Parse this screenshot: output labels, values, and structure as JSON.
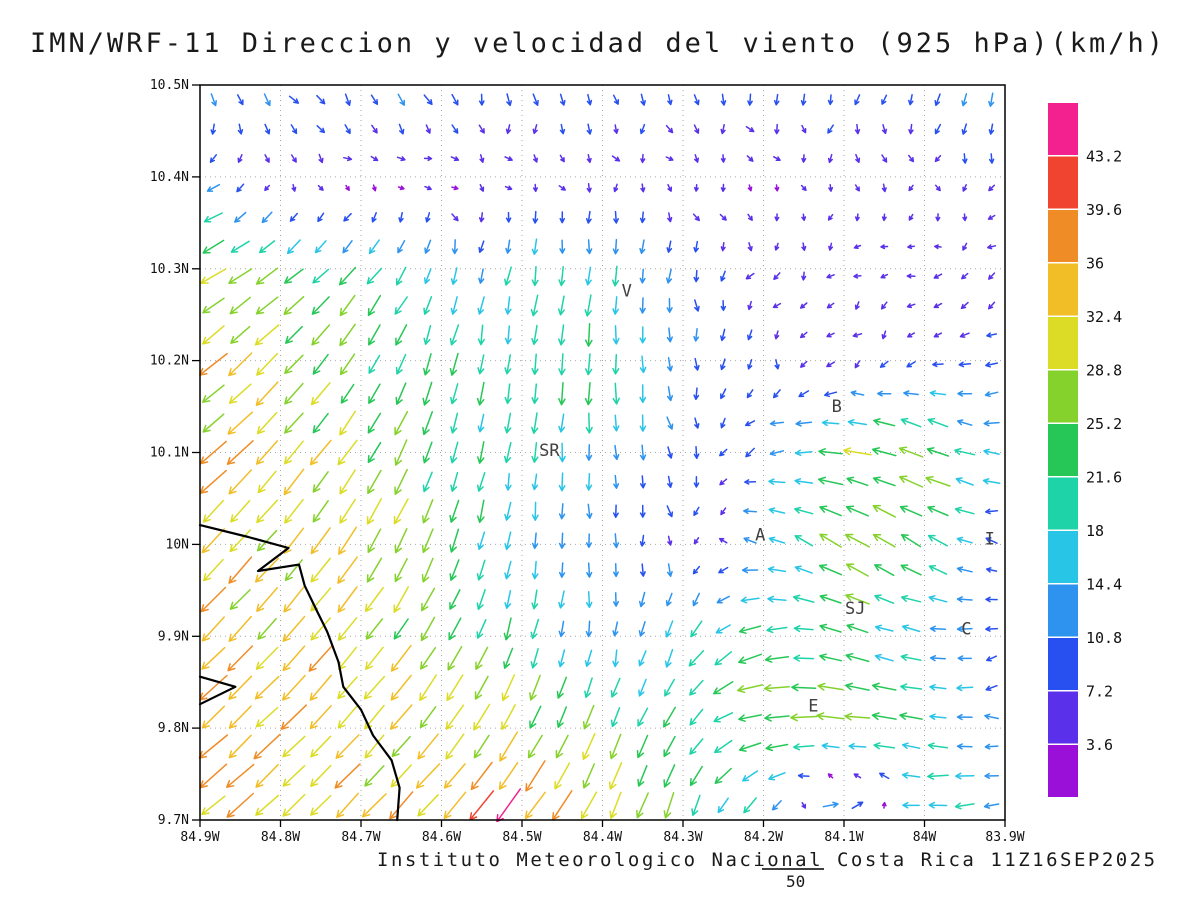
{
  "page": {
    "title": "IMN/WRF-11 Direccion y velocidad del viento (925 hPa)(km/h)",
    "footer": "Instituto Meteorologico Nacional Costa Rica 11Z16SEP2025",
    "reference_vector_label": "50"
  },
  "chart_data": {
    "type": "quiver",
    "title": "IMN/WRF-11 Direccion y velocidad del viento (925 hPa)(km/h)",
    "model": "IMN/WRF-11",
    "variable": "Direccion y velocidad del viento",
    "level": "925 hPa",
    "units": "km/h",
    "valid_time": "11Z16SEP2025",
    "source": "Instituto Meteorologico Nacional Costa Rica",
    "x_axis": {
      "tick_labels": [
        "84.9W",
        "84.8W",
        "84.7W",
        "84.6W",
        "84.5W",
        "84.4W",
        "84.3W",
        "84.2W",
        "84.1W",
        "84W",
        "83.9W"
      ],
      "lon_west_range": [
        84.9,
        83.9
      ],
      "grid": "dotted"
    },
    "y_axis": {
      "tick_labels": [
        "10.5N",
        "10.4N",
        "10.3N",
        "10.2N",
        "10.1N",
        "10N",
        "9.9N",
        "9.8N",
        "9.7N"
      ],
      "lat_north_range": [
        9.7,
        10.5
      ],
      "grid": "dotted"
    },
    "colorbar": {
      "position": "right",
      "levels": [
        3.6,
        7.2,
        10.8,
        14.4,
        18,
        21.6,
        25.2,
        28.8,
        32.4,
        36,
        39.6,
        43.2
      ],
      "labels": [
        "3.6",
        "7.2",
        "10.8",
        "14.4",
        "18",
        "21.6",
        "25.2",
        "28.8",
        "32.4",
        "36",
        "39.6",
        "43.2"
      ],
      "colors": [
        "#9a10d8",
        "#5a30ea",
        "#2850f0",
        "#2e93ee",
        "#29c5e6",
        "#1fd3a8",
        "#27c757",
        "#85d22c",
        "#dcdc26",
        "#f2be27",
        "#f08c26",
        "#f04430",
        "#f2218f"
      ]
    },
    "reference_vector_kmh": 50,
    "stations": [
      {
        "label": "V",
        "lon_w": 84.37,
        "lat_n": 10.27
      },
      {
        "label": "B",
        "lon_w": 84.109,
        "lat_n": 10.144
      },
      {
        "label": "SR",
        "lon_w": 84.466,
        "lat_n": 10.096
      },
      {
        "label": "A",
        "lon_w": 84.204,
        "lat_n": 10.004
      },
      {
        "label": "I",
        "lon_w": 83.919,
        "lat_n": 10.0
      },
      {
        "label": "SJ",
        "lon_w": 84.086,
        "lat_n": 9.924
      },
      {
        "label": "C",
        "lon_w": 83.948,
        "lat_n": 9.902
      },
      {
        "label": "E",
        "lon_w": 84.138,
        "lat_n": 9.818
      }
    ],
    "coastlines": [
      [
        [
          84.9,
          10.021
        ],
        [
          84.84,
          10.008
        ],
        [
          84.79,
          9.996
        ],
        [
          84.828,
          9.971
        ],
        [
          84.777,
          9.978
        ],
        [
          84.77,
          9.955
        ],
        [
          84.755,
          9.928
        ],
        [
          84.742,
          9.905
        ],
        [
          84.728,
          9.872
        ],
        [
          84.722,
          9.845
        ],
        [
          84.7,
          9.82
        ],
        [
          84.685,
          9.792
        ],
        [
          84.662,
          9.765
        ],
        [
          84.652,
          9.735
        ],
        [
          84.655,
          9.7
        ]
      ],
      [
        [
          84.9,
          9.826
        ],
        [
          84.856,
          9.845
        ],
        [
          84.9,
          9.856
        ]
      ]
    ],
    "wind_grid": {
      "note": "coarse 0.1-degree estimate of plotted field; dir_to_deg = direction arrows point toward (0=E, 90=N)",
      "lons_w": [
        84.9,
        84.8,
        84.7,
        84.6,
        84.5,
        84.4,
        84.3,
        84.2,
        84.1,
        84.0,
        83.9
      ],
      "lats_n": [
        10.5,
        10.4,
        10.3,
        10.2,
        10.1,
        10.0,
        9.9,
        9.8,
        9.7
      ],
      "speed_kmh": [
        [
          12,
          12,
          11,
          12,
          10,
          10,
          9,
          10,
          9,
          10,
          12
        ],
        [
          14,
          6,
          4,
          4,
          4,
          5,
          4,
          4,
          5,
          5,
          6
        ],
        [
          28,
          26,
          20,
          14,
          16,
          18,
          10,
          6,
          5,
          5,
          6
        ],
        [
          33,
          30,
          24,
          20,
          22,
          22,
          12,
          7,
          6,
          7,
          9
        ],
        [
          34,
          31,
          29,
          22,
          18,
          15,
          10,
          12,
          25,
          27,
          14
        ],
        [
          34,
          32,
          30,
          24,
          16,
          12,
          7,
          14,
          26,
          23,
          7
        ],
        [
          34,
          33,
          31,
          28,
          20,
          14,
          18,
          22,
          22,
          16,
          8
        ],
        [
          35,
          34,
          32,
          30,
          30,
          24,
          20,
          30,
          26,
          20,
          10
        ],
        [
          35,
          34,
          34,
          34,
          42,
          32,
          24,
          16,
          26,
          20,
          14
        ]
      ],
      "dir_to_deg": [
        [
          300,
          310,
          300,
          290,
          280,
          290,
          280,
          270,
          260,
          250,
          240
        ],
        [
          200,
          330,
          350,
          340,
          320,
          300,
          310,
          330,
          300,
          280,
          260
        ],
        [
          210,
          215,
          230,
          250,
          260,
          265,
          270,
          250,
          220,
          200,
          190
        ],
        [
          220,
          225,
          240,
          255,
          262,
          268,
          275,
          260,
          230,
          200,
          185
        ],
        [
          222,
          228,
          235,
          255,
          265,
          272,
          280,
          200,
          170,
          160,
          180
        ],
        [
          225,
          230,
          238,
          250,
          262,
          272,
          280,
          160,
          150,
          150,
          180
        ],
        [
          225,
          228,
          232,
          240,
          258,
          268,
          245,
          195,
          160,
          175,
          195
        ],
        [
          222,
          225,
          228,
          232,
          240,
          250,
          235,
          185,
          175,
          170,
          190
        ],
        [
          220,
          223,
          226,
          228,
          232,
          245,
          255,
          240,
          15,
          185,
          190
        ]
      ]
    }
  }
}
